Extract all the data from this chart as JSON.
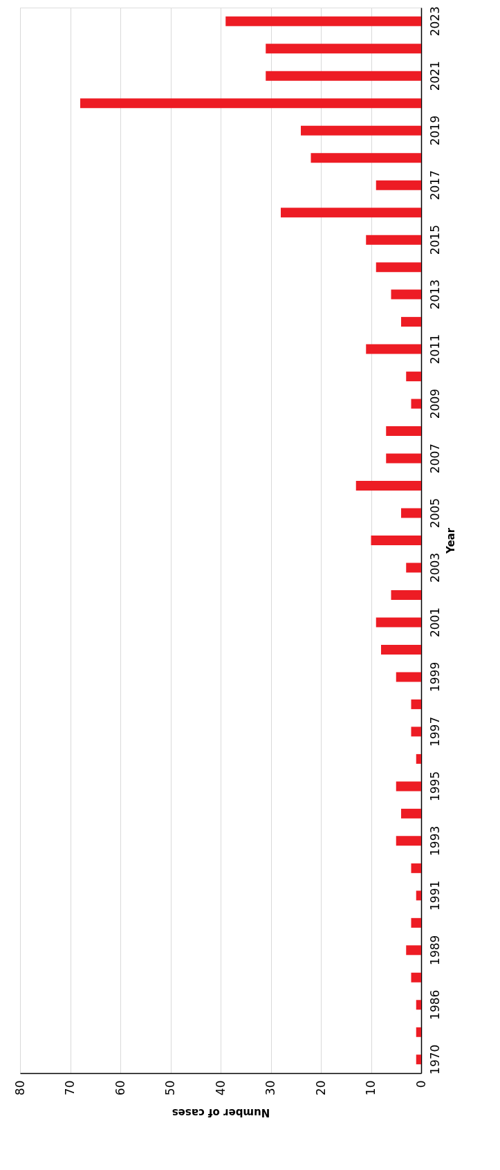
{
  "chart_data": {
    "type": "bar",
    "orientation": "horizontal",
    "xlabel": "Number of cases",
    "ylabel": "Year",
    "categories": [
      "2023",
      null,
      "2021",
      null,
      "2019",
      null,
      "2017",
      null,
      "2015",
      null,
      "2013",
      null,
      "2011",
      null,
      "2009",
      null,
      "2007",
      null,
      "2005",
      null,
      "2003",
      null,
      "2001",
      null,
      "1999",
      null,
      "1997",
      null,
      "1995",
      null,
      "1993",
      null,
      "1991",
      null,
      "1989",
      null,
      "1986",
      null,
      "1970"
    ],
    "values": [
      39,
      31,
      31,
      68,
      24,
      22,
      9,
      28,
      11,
      9,
      6,
      4,
      11,
      3,
      2,
      7,
      7,
      13,
      4,
      10,
      3,
      6,
      9,
      8,
      5,
      2,
      2,
      1,
      5,
      4,
      5,
      2,
      1,
      2,
      3,
      2,
      1,
      1,
      1
    ],
    "color": "#ed1c24",
    "xlim": [
      80,
      0
    ],
    "xticks": [
      80,
      70,
      60,
      50,
      40,
      30,
      20,
      10,
      0
    ],
    "grid": "x"
  }
}
